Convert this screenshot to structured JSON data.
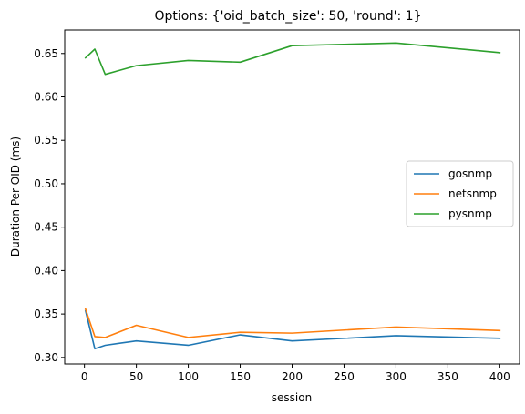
{
  "chart_data": {
    "type": "line",
    "title": "Options: {'oid_batch_size': 50, 'round': 1}",
    "xlabel": "session",
    "ylabel": "Duration Per OID (ms)",
    "xlim": [
      -19,
      419
    ],
    "ylim": [
      0.2925,
      0.677
    ],
    "xticks": [
      0,
      50,
      100,
      150,
      200,
      250,
      300,
      350,
      400
    ],
    "xtick_labels": [
      "0",
      "50",
      "100",
      "150",
      "200",
      "250",
      "300",
      "350",
      "400"
    ],
    "yticks": [
      0.3,
      0.35,
      0.4,
      0.45,
      0.5,
      0.55,
      0.6,
      0.65
    ],
    "ytick_labels": [
      "0.30",
      "0.35",
      "0.40",
      "0.45",
      "0.50",
      "0.55",
      "0.60",
      "0.65"
    ],
    "grid": false,
    "legend_position": "center-right",
    "x": [
      1,
      10,
      20,
      50,
      100,
      150,
      200,
      300,
      400
    ],
    "series": [
      {
        "name": "gosnmp",
        "color": "#1f77b4",
        "values": [
          0.354,
          0.31,
          0.314,
          0.319,
          0.314,
          0.326,
          0.319,
          0.325,
          0.322
        ]
      },
      {
        "name": "netsnmp",
        "color": "#ff7f0e",
        "values": [
          0.356,
          0.324,
          0.323,
          0.337,
          0.323,
          0.329,
          0.328,
          0.335,
          0.331
        ]
      },
      {
        "name": "pysnmp",
        "color": "#2ca02c",
        "values": [
          0.645,
          0.655,
          0.626,
          0.636,
          0.642,
          0.64,
          0.659,
          0.662,
          0.651
        ]
      }
    ]
  }
}
